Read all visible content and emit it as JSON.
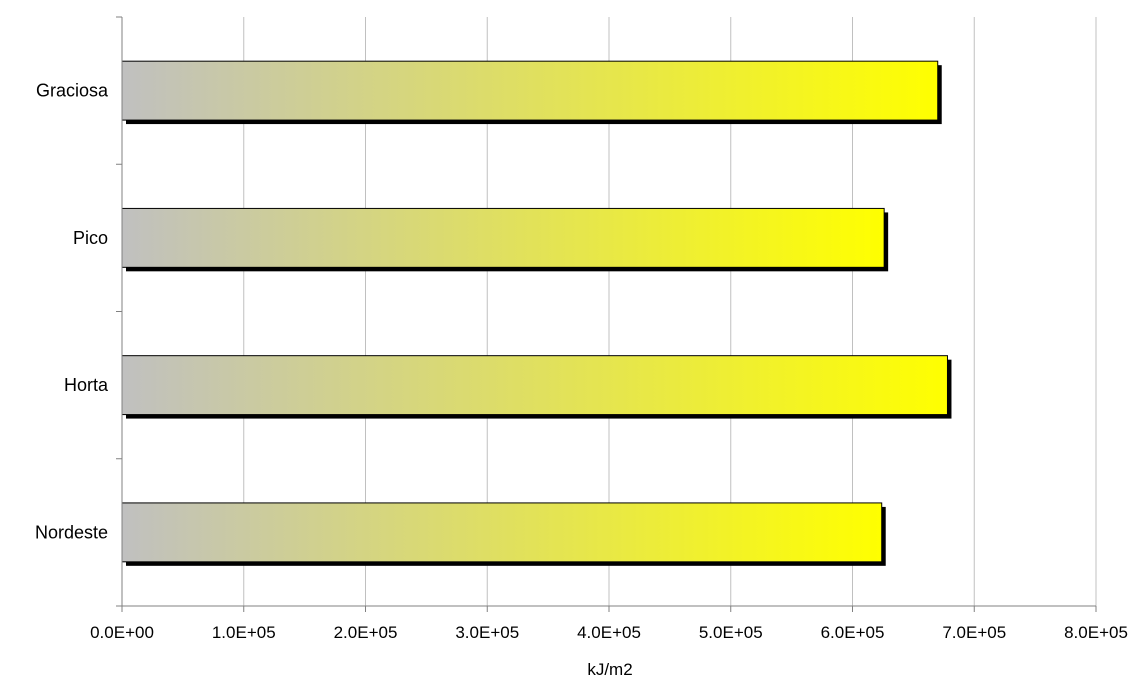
{
  "chart_data": {
    "type": "bar",
    "orientation": "horizontal",
    "categories": [
      "Graciosa",
      "Pico",
      "Horta",
      "Nordeste"
    ],
    "values": [
      670000,
      626000,
      678000,
      624000
    ],
    "title": "",
    "xlabel": "kJ/m2",
    "ylabel": "",
    "xlim": [
      0,
      800000
    ],
    "x_ticks": [
      0,
      100000,
      200000,
      300000,
      400000,
      500000,
      600000,
      700000,
      800000
    ],
    "x_tick_labels": [
      "0.0E+00",
      "1.0E+05",
      "2.0E+05",
      "3.0E+05",
      "4.0E+05",
      "5.0E+05",
      "6.0E+05",
      "7.0E+05",
      "8.0E+05"
    ],
    "grid": "vertical",
    "legend": "none",
    "colors": {
      "bar_gradient_start": "#c0c0c0",
      "bar_gradient_end": "#ffff00",
      "bar_shadow": "#000000",
      "gridline": "#c0c0c0",
      "axis": "#808080"
    }
  }
}
